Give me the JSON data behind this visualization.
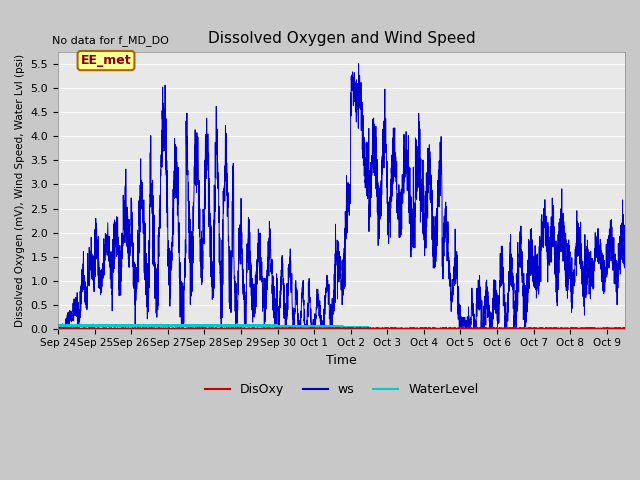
{
  "title": "Dissolved Oxygen and Wind Speed",
  "no_data_text": "No data for f_MD_DO",
  "xlabel": "Time",
  "ylabel": "Dissolved Oxygen (mV), Wind Speed, Water Lvl (psi)",
  "ylim": [
    0.0,
    5.75
  ],
  "yticks": [
    0.0,
    0.5,
    1.0,
    1.5,
    2.0,
    2.5,
    3.0,
    3.5,
    4.0,
    4.5,
    5.0,
    5.5
  ],
  "fig_bg_color": "#c8c8c8",
  "plot_bg_color": "#e8e8e8",
  "legend_labels": [
    "DisOxy",
    "ws",
    "WaterLevel"
  ],
  "legend_colors": [
    "#cc0000",
    "#0000cc",
    "#00cccc"
  ],
  "ws_color": "#0000cc",
  "disoxy_color": "#cc0000",
  "waterlevel_color": "#00cccc",
  "annotation_box_text": "EE_met",
  "annotation_box_facecolor": "#ffff99",
  "annotation_box_edgecolor": "#aa6600",
  "grid_color": "#ffffff",
  "x_tick_labels": [
    "Sep 24",
    "Sep 25",
    "Sep 26",
    "Sep 27",
    "Sep 28",
    "Sep 29",
    "Sep 30",
    "Oct 1",
    "Oct 2",
    "Oct 3",
    "Oct 4",
    "Oct 5",
    "Oct 6",
    "Oct 7",
    "Oct 8",
    "Oct 9"
  ],
  "x_tick_positions": [
    0,
    1,
    2,
    3,
    4,
    5,
    6,
    7,
    8,
    9,
    10,
    11,
    12,
    13,
    14,
    15
  ]
}
